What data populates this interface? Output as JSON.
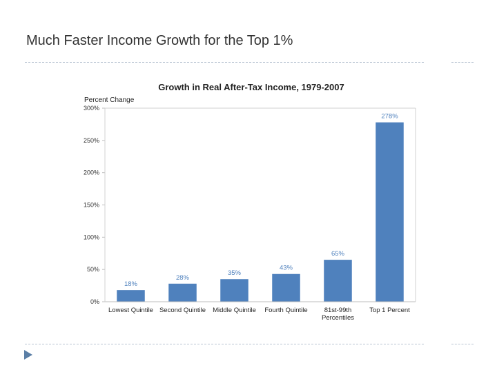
{
  "slide": {
    "title": "Much Faster Income Growth for the Top 1%"
  },
  "chart_data": {
    "type": "bar",
    "title": "Growth in Real After-Tax Income, 1979-2007",
    "ylabel": "Percent Change",
    "xlabel": "",
    "categories": [
      "Lowest Quintile",
      "Second Quintile",
      "Middle Quintile",
      "Fourth Quintile",
      "81st-99th Percentiles",
      "Top 1 Percent"
    ],
    "values": [
      18,
      28,
      35,
      43,
      65,
      278
    ],
    "data_labels": [
      "18%",
      "28%",
      "35%",
      "43%",
      "65%",
      "278%"
    ],
    "yticks": [
      0,
      50,
      100,
      150,
      200,
      250,
      300
    ],
    "ytick_labels": [
      "0%",
      "50%",
      "100%",
      "150%",
      "200%",
      "250%",
      "300%"
    ],
    "ylim": [
      0,
      300
    ],
    "grid": false,
    "bar_color": "#4f81bd",
    "label_color": "#4f81bd"
  }
}
